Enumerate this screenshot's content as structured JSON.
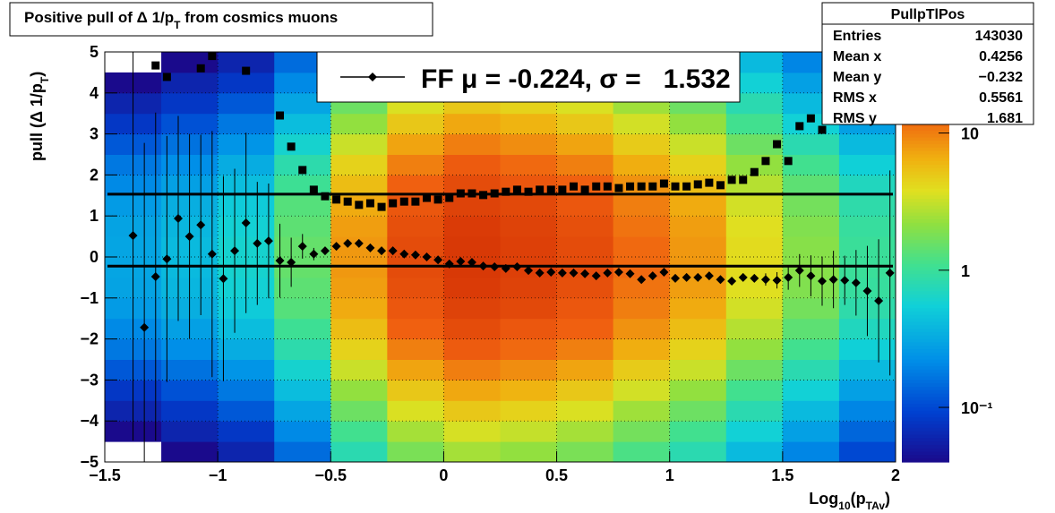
{
  "chart_data": {
    "type": "profile2d",
    "title": [
      "Positive pull of Δ 1/p",
      "T",
      " from cosmics muons"
    ],
    "x_label": [
      "Log",
      "10",
      "(p",
      "TAv",
      ")"
    ],
    "y_label": [
      "pull (Δ 1/p",
      "T",
      ")"
    ],
    "xlim": [
      -1.5,
      2
    ],
    "ylim": [
      -5,
      5
    ],
    "xticks": [
      {
        "value": -1.5,
        "label": "−1.5"
      },
      {
        "value": -1,
        "label": "−1"
      },
      {
        "value": -0.5,
        "label": "−0.5"
      },
      0,
      0.5,
      1,
      1.5,
      2
    ],
    "yticks": [
      {
        "value": -5,
        "label": "−5"
      },
      {
        "value": -4,
        "label": "−4"
      },
      {
        "value": -3,
        "label": "−3"
      },
      {
        "value": -2,
        "label": "−2"
      },
      {
        "value": -1,
        "label": "−1"
      },
      0,
      1,
      2,
      3,
      4,
      5
    ],
    "grid": true,
    "zlim": [
      0.04,
      39
    ],
    "zlog": true,
    "zticks": [
      {
        "value": 0.1,
        "label": "10⁻¹"
      },
      1,
      10
    ],
    "xbins": [
      -1.5,
      -1.25,
      -1,
      -0.75,
      -0.5,
      -0.25,
      0,
      0.25,
      0.5,
      0.75,
      1,
      1.25,
      1.5,
      1.75,
      2
    ],
    "ybins": [
      -5,
      -4.5,
      -4,
      -3.5,
      -3,
      -2.5,
      -2,
      -1.5,
      -1,
      -0.5,
      0,
      0.5,
      1,
      1.5,
      2,
      2.5,
      3,
      3.5,
      4,
      4.5,
      5
    ],
    "z": [
      [
        0.03,
        0.04,
        0.06,
        0.15,
        0.8,
        1.8,
        2.5,
        2.2,
        1.8,
        1.2,
        0.8,
        0.4,
        0.2,
        0.1
      ],
      [
        0.04,
        0.06,
        0.08,
        0.21,
        1.1,
        2.5,
        3.5,
        3.1,
        2.5,
        1.7,
        1.1,
        0.56,
        0.28,
        0.14
      ],
      [
        0.06,
        0.08,
        0.12,
        0.3,
        1.6,
        3.6,
        5,
        4.4,
        3.6,
        2.4,
        1.6,
        0.8,
        0.4,
        0.2
      ],
      [
        0.08,
        0.11,
        0.17,
        0.42,
        2.2,
        5,
        7,
        6.2,
        5,
        3.4,
        2.2,
        1.1,
        0.56,
        0.28
      ],
      [
        0.12,
        0.16,
        0.24,
        0.6,
        3.2,
        7.2,
        10,
        8.8,
        7.2,
        4.8,
        3.2,
        1.6,
        0.8,
        0.4
      ],
      [
        0.17,
        0.22,
        0.33,
        0.83,
        4.4,
        9.9,
        14,
        12,
        9.9,
        6.6,
        4.4,
        2.2,
        1.1,
        0.55
      ],
      [
        0.21,
        0.28,
        0.42,
        1.05,
        5.6,
        13,
        18,
        15,
        13,
        8.4,
        5.6,
        2.8,
        1.4,
        0.7
      ],
      [
        0.26,
        0.34,
        0.51,
        1.3,
        6.8,
        15,
        21,
        19,
        15,
        10,
        6.8,
        3.4,
        1.7,
        0.85
      ],
      [
        0.29,
        0.38,
        0.57,
        1.4,
        7.6,
        17,
        24,
        21,
        17,
        11,
        7.6,
        3.8,
        1.9,
        0.95
      ],
      [
        0.3,
        0.4,
        0.6,
        1.5,
        8,
        18,
        25,
        22,
        18,
        12,
        8,
        4,
        2,
        1
      ],
      [
        0.3,
        0.4,
        0.6,
        1.5,
        8,
        18,
        25,
        22,
        18,
        12,
        8,
        4,
        2,
        1
      ],
      [
        0.29,
        0.38,
        0.57,
        1.4,
        7.6,
        17,
        24,
        21,
        17,
        11,
        7.6,
        3.8,
        1.9,
        0.95
      ],
      [
        0.26,
        0.34,
        0.51,
        1.3,
        6.8,
        15,
        21,
        19,
        15,
        10,
        6.8,
        3.4,
        1.7,
        0.85
      ],
      [
        0.21,
        0.28,
        0.42,
        1.05,
        5.6,
        13,
        18,
        15,
        13,
        8.4,
        5.6,
        2.8,
        1.4,
        0.7
      ],
      [
        0.17,
        0.22,
        0.33,
        0.83,
        4.4,
        9.9,
        14,
        12,
        9.9,
        6.6,
        4.4,
        2.2,
        1.1,
        0.55
      ],
      [
        0.12,
        0.16,
        0.24,
        0.6,
        3.2,
        7.2,
        10,
        8.8,
        7.2,
        4.8,
        3.2,
        1.6,
        0.8,
        0.4
      ],
      [
        0.08,
        0.11,
        0.17,
        0.42,
        2.2,
        5,
        7,
        6.2,
        5,
        3.4,
        2.2,
        1.1,
        0.56,
        0.28
      ],
      [
        0.06,
        0.08,
        0.12,
        0.3,
        1.6,
        3.6,
        5,
        4.4,
        3.6,
        2.4,
        1.6,
        0.8,
        0.4,
        0.2
      ],
      [
        0.04,
        0.06,
        0.08,
        0.21,
        1.1,
        2.5,
        3.5,
        3.1,
        2.5,
        1.7,
        1.1,
        0.56,
        0.28,
        0.14
      ],
      [
        0.03,
        0.04,
        0.06,
        0.15,
        0.8,
        1.8,
        2.5,
        2.2,
        1.8,
        1.2,
        0.8,
        0.4,
        0.2,
        0.1
      ]
    ],
    "x": [
      -1.375,
      -1.325,
      -1.275,
      -1.225,
      -1.175,
      -1.125,
      -1.075,
      -1.025,
      -0.975,
      -0.925,
      -0.875,
      -0.825,
      -0.775,
      -0.725,
      -0.675,
      -0.625,
      -0.575,
      -0.525,
      -0.475,
      -0.425,
      -0.375,
      -0.325,
      -0.275,
      -0.225,
      -0.175,
      -0.125,
      -0.075,
      -0.025,
      0.025,
      0.075,
      0.125,
      0.175,
      0.225,
      0.275,
      0.325,
      0.375,
      0.425,
      0.475,
      0.525,
      0.575,
      0.625,
      0.675,
      0.725,
      0.775,
      0.825,
      0.875,
      0.925,
      0.975,
      1.025,
      1.075,
      1.125,
      1.175,
      1.225,
      1.275,
      1.325,
      1.375,
      1.425,
      1.475,
      1.525,
      1.575,
      1.625,
      1.675,
      1.725,
      1.775,
      1.825,
      1.875,
      1.925,
      1.975
    ],
    "series": [
      {
        "marker": "diamond",
        "color": "#000000",
        "values": [
          0.52,
          -1.72,
          -0.48,
          -0.05,
          0.94,
          0.5,
          0.78,
          0.07,
          -0.53,
          0.15,
          0.83,
          0.33,
          0.39,
          -0.09,
          -0.13,
          0.26,
          0.07,
          0.15,
          0.26,
          0.33,
          0.33,
          0.22,
          0.15,
          0.15,
          0.07,
          0.05,
          0,
          -0.07,
          -0.17,
          -0.11,
          -0.13,
          -0.22,
          -0.24,
          -0.28,
          -0.24,
          -0.33,
          -0.39,
          -0.37,
          -0.39,
          -0.39,
          -0.41,
          -0.46,
          -0.39,
          -0.37,
          -0.41,
          -0.55,
          -0.46,
          -0.37,
          -0.52,
          -0.5,
          -0.5,
          -0.46,
          -0.55,
          -0.59,
          -0.5,
          -0.52,
          -0.55,
          -0.57,
          -0.5,
          -0.33,
          -0.46,
          -0.59,
          -0.55,
          -0.57,
          -0.63,
          -0.83,
          -1.07,
          -0.39
        ],
        "errors": [
          5,
          4.5,
          4,
          3,
          2.5,
          2.5,
          2.2,
          3,
          2.5,
          2,
          2.2,
          1.5,
          1.4,
          0.9,
          0.6,
          0.3,
          0.15,
          0.05,
          0.05,
          0.05,
          0.05,
          0.05,
          0.05,
          0.05,
          0.05,
          0.05,
          0.05,
          0.05,
          0.05,
          0.05,
          0.05,
          0.05,
          0.05,
          0.05,
          0.05,
          0.05,
          0.05,
          0.05,
          0.05,
          0.05,
          0.05,
          0.05,
          0.05,
          0.05,
          0.05,
          0.05,
          0.05,
          0.05,
          0.05,
          0.05,
          0.05,
          0.05,
          0.05,
          0.05,
          0.05,
          0.05,
          0.15,
          0.2,
          0.3,
          0.4,
          0.5,
          0.6,
          0.7,
          0.6,
          0.8,
          1.1,
          1.5,
          2.5
        ]
      },
      {
        "marker": "square",
        "color": "#000000",
        "values": [
          null,
          null,
          4.67,
          4.39,
          null,
          null,
          4.6,
          4.9,
          null,
          null,
          4.54,
          null,
          null,
          3.45,
          2.69,
          2.12,
          1.64,
          1.48,
          1.4,
          1.35,
          1.27,
          1.31,
          1.22,
          1.31,
          1.35,
          1.35,
          1.44,
          1.4,
          1.44,
          1.55,
          1.55,
          1.51,
          1.55,
          1.59,
          1.64,
          1.59,
          1.64,
          1.64,
          1.64,
          1.72,
          1.64,
          1.72,
          1.72,
          1.68,
          1.72,
          1.72,
          1.72,
          1.79,
          1.72,
          1.72,
          1.77,
          1.81,
          1.75,
          1.88,
          1.88,
          2.07,
          2.34,
          2.75,
          2.34,
          3.19,
          3.38,
          3.1,
          3.98,
          3.95,
          null,
          4.21,
          null,
          null
        ]
      }
    ],
    "fit_lines": [
      1.532,
      -0.224
    ],
    "legend": {
      "text": "FF μ = -0.224, σ =   1.532"
    },
    "stats": {
      "title": "PullpTlPos",
      "rows": [
        [
          "Entries",
          "143030"
        ],
        [
          "Mean x",
          "0.4256"
        ],
        [
          "Mean y",
          "−0.232"
        ],
        [
          "RMS x",
          "0.5561"
        ],
        [
          "RMS y",
          "1.681"
        ]
      ]
    }
  }
}
